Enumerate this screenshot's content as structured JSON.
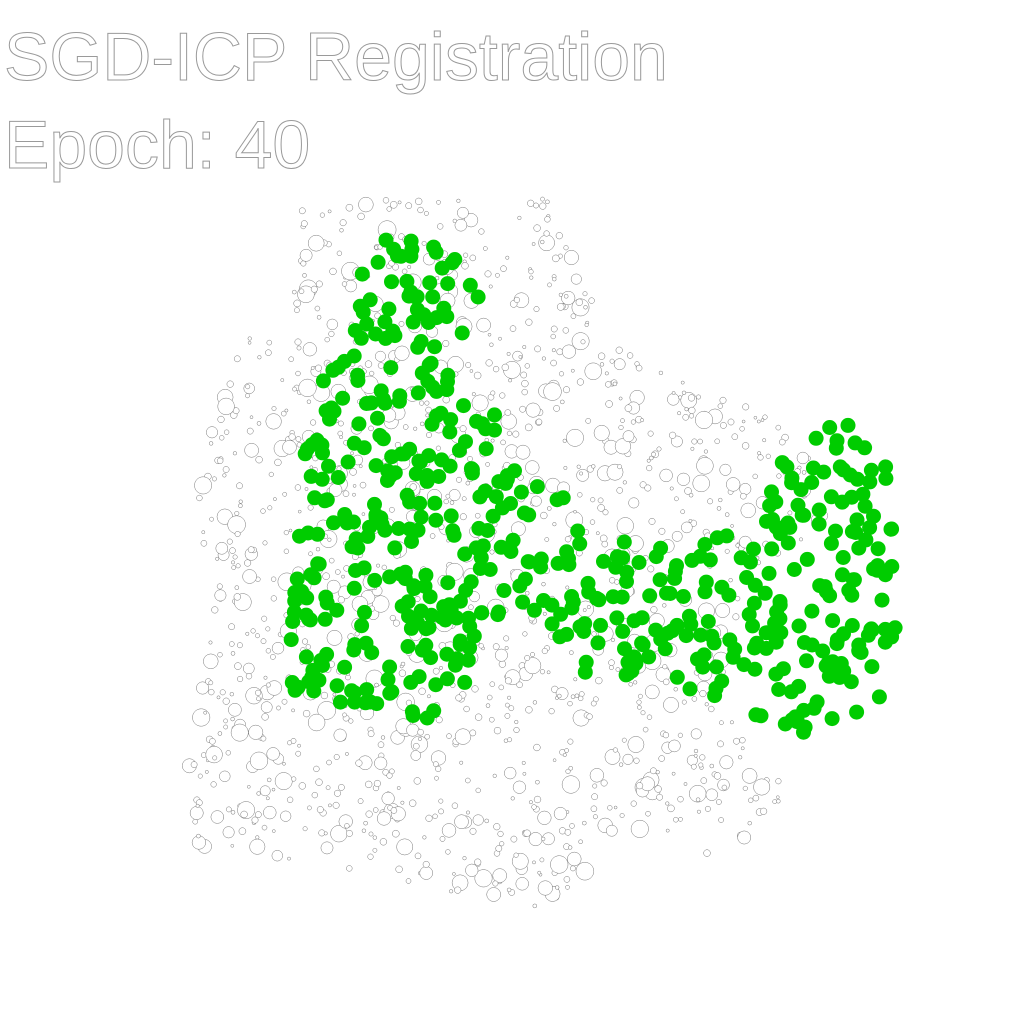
{
  "header": {
    "title": "SGD-ICP Registration",
    "epoch_label": "Epoch: 40"
  },
  "colors": {
    "background": "#ffffff",
    "target_points_fill": "#ffffff",
    "target_points_stroke": "#777777",
    "source_points_fill": "#00cc00"
  }
}
